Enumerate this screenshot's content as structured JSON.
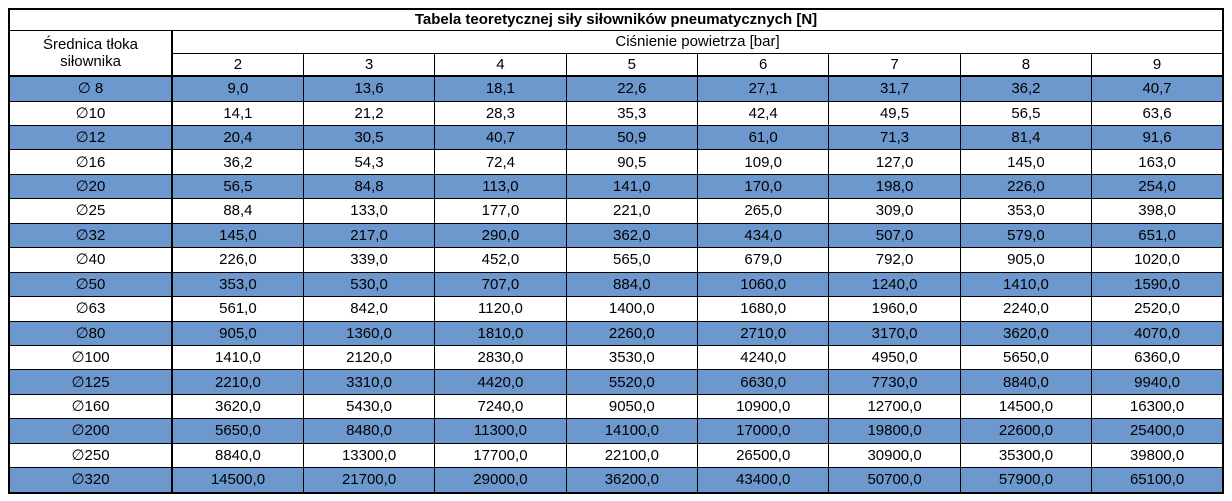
{
  "title": "Tabela teoretycznej siły siłowników pneumatycznych [N]",
  "headers": {
    "diameter_label": "Średnica tłoka siłownika",
    "pressure_group_label": "Ciśnienie powietrza [bar]",
    "pressures": [
      "2",
      "3",
      "4",
      "5",
      "6",
      "7",
      "8",
      "9"
    ]
  },
  "rows": [
    {
      "diameter": "∅ 8",
      "highlight": true,
      "values": [
        "9,0",
        "13,6",
        "18,1",
        "22,6",
        "27,1",
        "31,7",
        "36,2",
        "40,7"
      ]
    },
    {
      "diameter": "∅10",
      "highlight": false,
      "values": [
        "14,1",
        "21,2",
        "28,3",
        "35,3",
        "42,4",
        "49,5",
        "56,5",
        "63,6"
      ]
    },
    {
      "diameter": "∅12",
      "highlight": true,
      "values": [
        "20,4",
        "30,5",
        "40,7",
        "50,9",
        "61,0",
        "71,3",
        "81,4",
        "91,6"
      ]
    },
    {
      "diameter": "∅16",
      "highlight": false,
      "values": [
        "36,2",
        "54,3",
        "72,4",
        "90,5",
        "109,0",
        "127,0",
        "145,0",
        "163,0"
      ]
    },
    {
      "diameter": "∅20",
      "highlight": true,
      "values": [
        "56,5",
        "84,8",
        "113,0",
        "141,0",
        "170,0",
        "198,0",
        "226,0",
        "254,0"
      ]
    },
    {
      "diameter": "∅25",
      "highlight": false,
      "values": [
        "88,4",
        "133,0",
        "177,0",
        "221,0",
        "265,0",
        "309,0",
        "353,0",
        "398,0"
      ]
    },
    {
      "diameter": "∅32",
      "highlight": true,
      "values": [
        "145,0",
        "217,0",
        "290,0",
        "362,0",
        "434,0",
        "507,0",
        "579,0",
        "651,0"
      ]
    },
    {
      "diameter": "∅40",
      "highlight": false,
      "values": [
        "226,0",
        "339,0",
        "452,0",
        "565,0",
        "679,0",
        "792,0",
        "905,0",
        "1020,0"
      ]
    },
    {
      "diameter": "∅50",
      "highlight": true,
      "values": [
        "353,0",
        "530,0",
        "707,0",
        "884,0",
        "1060,0",
        "1240,0",
        "1410,0",
        "1590,0"
      ]
    },
    {
      "diameter": "∅63",
      "highlight": false,
      "values": [
        "561,0",
        "842,0",
        "1120,0",
        "1400,0",
        "1680,0",
        "1960,0",
        "2240,0",
        "2520,0"
      ]
    },
    {
      "diameter": "∅80",
      "highlight": true,
      "values": [
        "905,0",
        "1360,0",
        "1810,0",
        "2260,0",
        "2710,0",
        "3170,0",
        "3620,0",
        "4070,0"
      ]
    },
    {
      "diameter": "∅100",
      "highlight": false,
      "values": [
        "1410,0",
        "2120,0",
        "2830,0",
        "3530,0",
        "4240,0",
        "4950,0",
        "5650,0",
        "6360,0"
      ]
    },
    {
      "diameter": "∅125",
      "highlight": true,
      "values": [
        "2210,0",
        "3310,0",
        "4420,0",
        "5520,0",
        "6630,0",
        "7730,0",
        "8840,0",
        "9940,0"
      ]
    },
    {
      "diameter": "∅160",
      "highlight": false,
      "values": [
        "3620,0",
        "5430,0",
        "7240,0",
        "9050,0",
        "10900,0",
        "12700,0",
        "14500,0",
        "16300,0"
      ]
    },
    {
      "diameter": "∅200",
      "highlight": true,
      "values": [
        "5650,0",
        "8480,0",
        "11300,0",
        "14100,0",
        "17000,0",
        "19800,0",
        "22600,0",
        "25400,0"
      ]
    },
    {
      "diameter": "∅250",
      "highlight": false,
      "values": [
        "8840,0",
        "13300,0",
        "17700,0",
        "22100,0",
        "26500,0",
        "30900,0",
        "35300,0",
        "39800,0"
      ]
    },
    {
      "diameter": "∅320",
      "highlight": true,
      "values": [
        "14500,0",
        "21700,0",
        "29000,0",
        "36200,0",
        "43400,0",
        "50700,0",
        "57900,0",
        "65100,0"
      ]
    }
  ],
  "colors": {
    "row_highlight": "#6d98ce",
    "border": "#000000",
    "text": "#000000",
    "background": "#ffffff"
  },
  "chart_data": {
    "type": "table",
    "title": "Tabela teoretycznej siły siłowników pneumatycznych [N]",
    "x_header": "Ciśnienie powietrza [bar]",
    "y_header": "Średnica tłoka siłownika",
    "pressures_bar": [
      2,
      3,
      4,
      5,
      6,
      7,
      8,
      9
    ],
    "series": [
      {
        "name": "∅ 8",
        "values": [
          9.0,
          13.6,
          18.1,
          22.6,
          27.1,
          31.7,
          36.2,
          40.7
        ]
      },
      {
        "name": "∅10",
        "values": [
          14.1,
          21.2,
          28.3,
          35.3,
          42.4,
          49.5,
          56.5,
          63.6
        ]
      },
      {
        "name": "∅12",
        "values": [
          20.4,
          30.5,
          40.7,
          50.9,
          61.0,
          71.3,
          81.4,
          91.6
        ]
      },
      {
        "name": "∅16",
        "values": [
          36.2,
          54.3,
          72.4,
          90.5,
          109.0,
          127.0,
          145.0,
          163.0
        ]
      },
      {
        "name": "∅20",
        "values": [
          56.5,
          84.8,
          113.0,
          141.0,
          170.0,
          198.0,
          226.0,
          254.0
        ]
      },
      {
        "name": "∅25",
        "values": [
          88.4,
          133.0,
          177.0,
          221.0,
          265.0,
          309.0,
          353.0,
          398.0
        ]
      },
      {
        "name": "∅32",
        "values": [
          145.0,
          217.0,
          290.0,
          362.0,
          434.0,
          507.0,
          579.0,
          651.0
        ]
      },
      {
        "name": "∅40",
        "values": [
          226.0,
          339.0,
          452.0,
          565.0,
          679.0,
          792.0,
          905.0,
          1020.0
        ]
      },
      {
        "name": "∅50",
        "values": [
          353.0,
          530.0,
          707.0,
          884.0,
          1060.0,
          1240.0,
          1410.0,
          1590.0
        ]
      },
      {
        "name": "∅63",
        "values": [
          561.0,
          842.0,
          1120.0,
          1400.0,
          1680.0,
          1960.0,
          2240.0,
          2520.0
        ]
      },
      {
        "name": "∅80",
        "values": [
          905.0,
          1360.0,
          1810.0,
          2260.0,
          2710.0,
          3170.0,
          3620.0,
          4070.0
        ]
      },
      {
        "name": "∅100",
        "values": [
          1410.0,
          2120.0,
          2830.0,
          3530.0,
          4240.0,
          4950.0,
          5650.0,
          6360.0
        ]
      },
      {
        "name": "∅125",
        "values": [
          2210.0,
          3310.0,
          4420.0,
          5520.0,
          6630.0,
          7730.0,
          8840.0,
          9940.0
        ]
      },
      {
        "name": "∅160",
        "values": [
          3620.0,
          5430.0,
          7240.0,
          9050.0,
          10900.0,
          12700.0,
          14500.0,
          16300.0
        ]
      },
      {
        "name": "∅200",
        "values": [
          5650.0,
          8480.0,
          11300.0,
          14100.0,
          17000.0,
          19800.0,
          22600.0,
          25400.0
        ]
      },
      {
        "name": "∅250",
        "values": [
          8840.0,
          13300.0,
          17700.0,
          22100.0,
          26500.0,
          30900.0,
          35300.0,
          39800.0
        ]
      },
      {
        "name": "∅320",
        "values": [
          14500.0,
          21700.0,
          29000.0,
          36200.0,
          43400.0,
          50700.0,
          57900.0,
          65100.0
        ]
      }
    ]
  }
}
